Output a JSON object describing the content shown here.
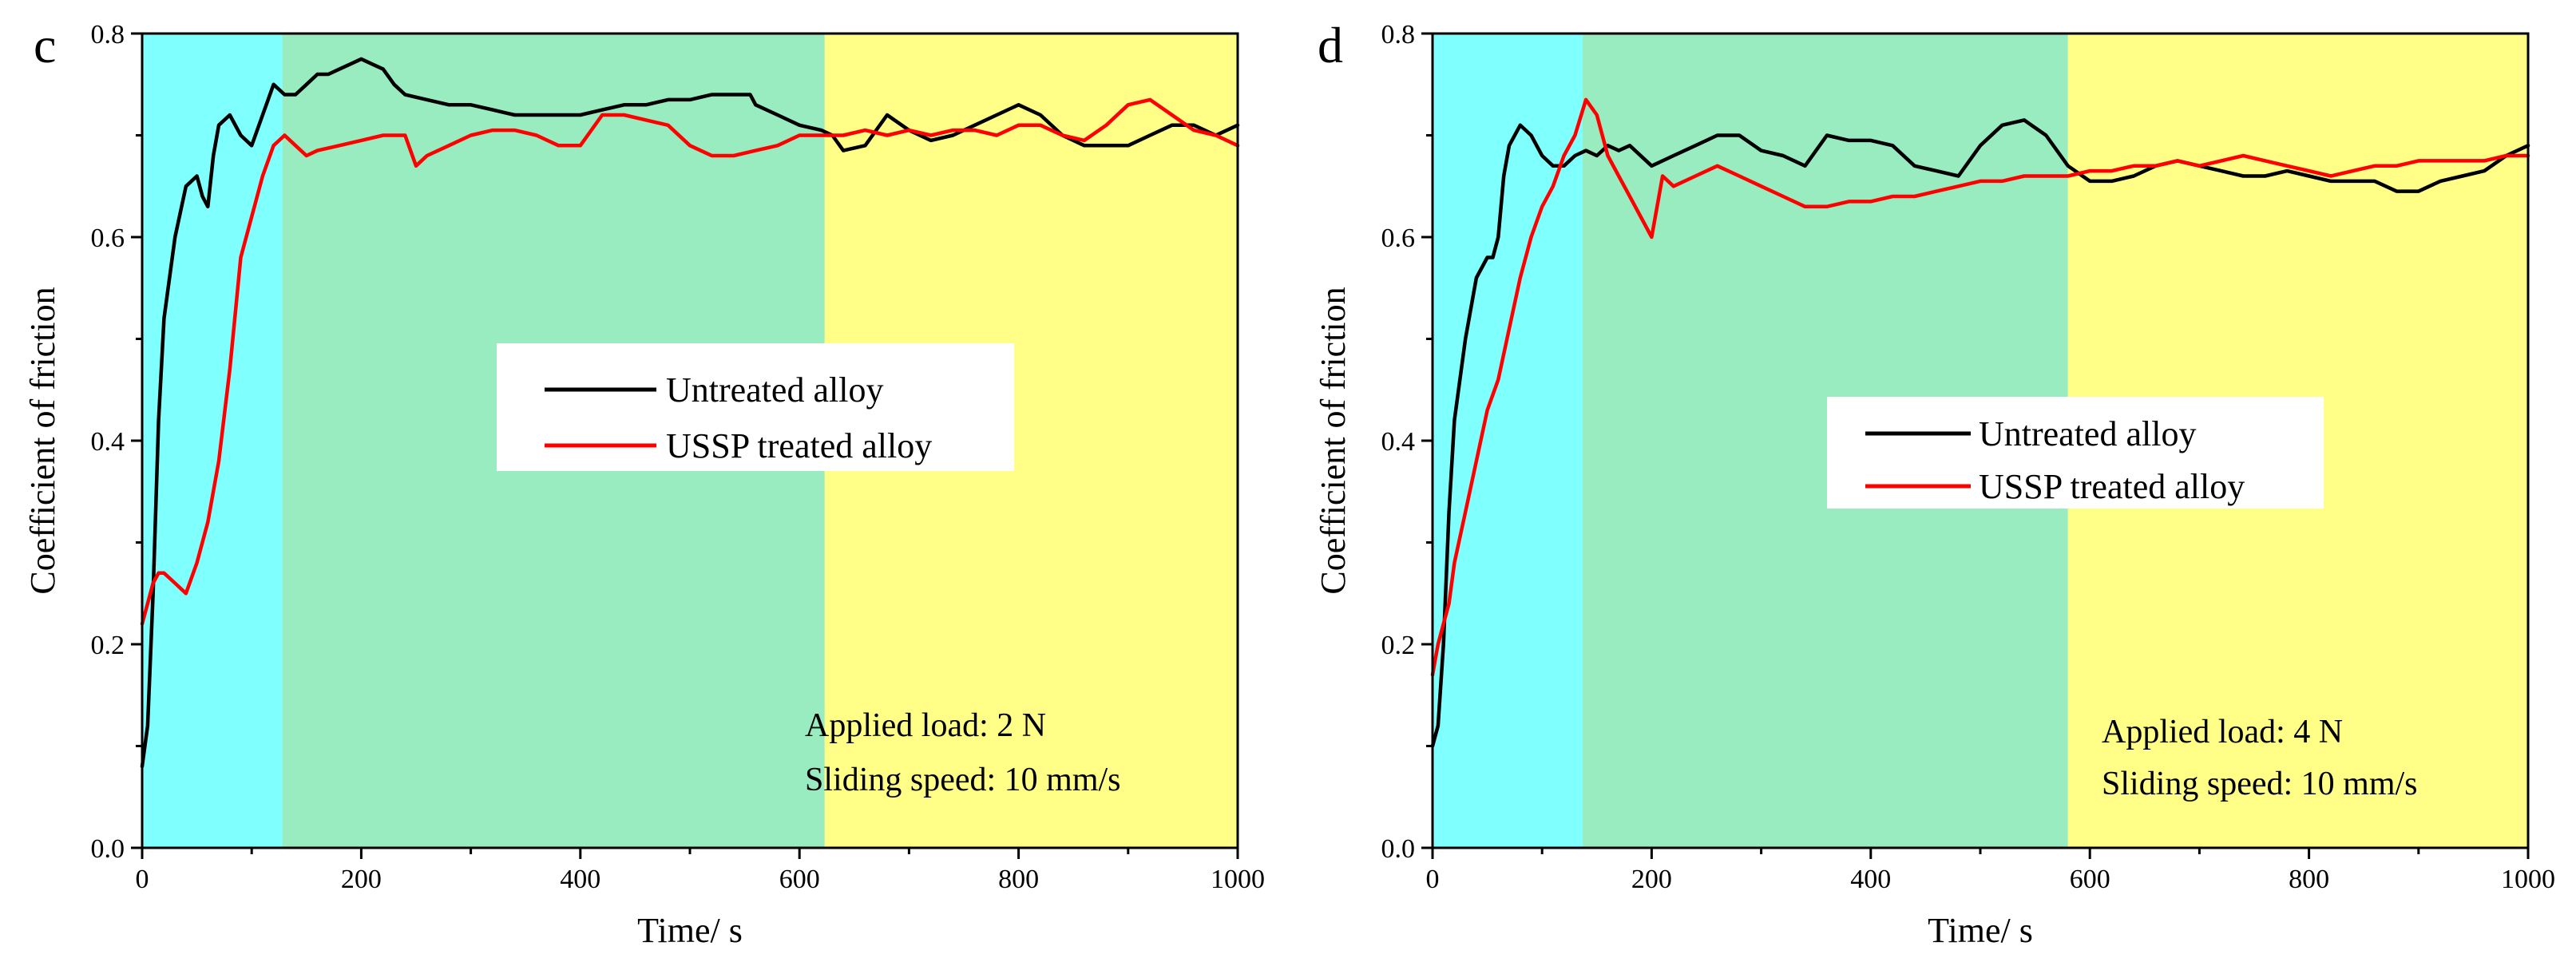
{
  "chart_data": [
    {
      "panel_label": "c",
      "type": "line",
      "xlabel": "Time/ s",
      "ylabel": "Coefficient of friction",
      "xlim": [
        0,
        1000
      ],
      "ylim": [
        0,
        0.8
      ],
      "x_ticks": [
        0,
        200,
        400,
        600,
        800,
        1000
      ],
      "x_tick_labels": [
        "0",
        "200",
        "400",
        "600",
        "800",
        "1000"
      ],
      "y_ticks": [
        0,
        0.2,
        0.4,
        0.6,
        0.8
      ],
      "y_tick_labels": [
        "0.0",
        "0.2",
        "0.4",
        "0.6",
        "0.8"
      ],
      "regions": [
        {
          "name": "stage-1",
          "x0": 0,
          "x1": 128,
          "color": "#80FFFF"
        },
        {
          "name": "stage-2",
          "x0": 128,
          "x1": 623,
          "color": "#99EBC0"
        },
        {
          "name": "stage-3",
          "x0": 623,
          "x1": 1000,
          "color": "#FFFF88"
        }
      ],
      "legend_position": "center",
      "series": [
        {
          "name": "Untreated alloy",
          "color": "#000000",
          "x": [
            0,
            5,
            10,
            15,
            20,
            30,
            40,
            50,
            55,
            60,
            65,
            70,
            80,
            90,
            100,
            110,
            120,
            130,
            140,
            150,
            160,
            170,
            180,
            190,
            200,
            210,
            220,
            230,
            240,
            260,
            280,
            300,
            320,
            340,
            360,
            380,
            400,
            420,
            440,
            460,
            480,
            500,
            520,
            540,
            555,
            560,
            580,
            600,
            620,
            630,
            640,
            660,
            680,
            700,
            720,
            740,
            760,
            780,
            800,
            820,
            840,
            860,
            880,
            900,
            920,
            940,
            960,
            980,
            1000
          ],
          "y": [
            0.08,
            0.12,
            0.25,
            0.42,
            0.52,
            0.6,
            0.65,
            0.66,
            0.64,
            0.63,
            0.68,
            0.71,
            0.72,
            0.7,
            0.69,
            0.72,
            0.75,
            0.74,
            0.74,
            0.75,
            0.76,
            0.76,
            0.765,
            0.77,
            0.775,
            0.77,
            0.765,
            0.75,
            0.74,
            0.735,
            0.73,
            0.73,
            0.725,
            0.72,
            0.72,
            0.72,
            0.72,
            0.725,
            0.73,
            0.73,
            0.735,
            0.735,
            0.74,
            0.74,
            0.74,
            0.73,
            0.72,
            0.71,
            0.705,
            0.7,
            0.685,
            0.69,
            0.72,
            0.705,
            0.695,
            0.7,
            0.71,
            0.72,
            0.73,
            0.72,
            0.7,
            0.69,
            0.69,
            0.69,
            0.7,
            0.71,
            0.71,
            0.7,
            0.71
          ]
        },
        {
          "name": "USSP treated alloy",
          "color": "#FF0000",
          "x": [
            0,
            5,
            10,
            15,
            20,
            25,
            30,
            40,
            50,
            60,
            70,
            80,
            90,
            100,
            110,
            120,
            130,
            140,
            150,
            160,
            180,
            200,
            220,
            240,
            250,
            260,
            280,
            300,
            320,
            340,
            360,
            380,
            400,
            420,
            440,
            460,
            480,
            500,
            520,
            540,
            560,
            580,
            600,
            620,
            640,
            660,
            680,
            700,
            720,
            740,
            760,
            780,
            800,
            820,
            840,
            860,
            880,
            900,
            920,
            940,
            960,
            980,
            1000
          ],
          "y": [
            0.22,
            0.24,
            0.26,
            0.27,
            0.27,
            0.265,
            0.26,
            0.25,
            0.28,
            0.32,
            0.38,
            0.47,
            0.58,
            0.62,
            0.66,
            0.69,
            0.7,
            0.69,
            0.68,
            0.685,
            0.69,
            0.695,
            0.7,
            0.7,
            0.67,
            0.68,
            0.69,
            0.7,
            0.705,
            0.705,
            0.7,
            0.69,
            0.69,
            0.72,
            0.72,
            0.715,
            0.71,
            0.69,
            0.68,
            0.68,
            0.685,
            0.69,
            0.7,
            0.7,
            0.7,
            0.705,
            0.7,
            0.705,
            0.7,
            0.705,
            0.705,
            0.7,
            0.71,
            0.71,
            0.7,
            0.695,
            0.71,
            0.73,
            0.735,
            0.72,
            0.705,
            0.7,
            0.69
          ]
        }
      ],
      "annotations": [
        "Applied load: 2 N",
        "Sliding speed: 10 mm/s"
      ]
    },
    {
      "panel_label": "d",
      "type": "line",
      "xlabel": "Time/ s",
      "ylabel": "Coefficient of friction",
      "xlim": [
        0,
        1000
      ],
      "ylim": [
        0,
        0.8
      ],
      "x_ticks": [
        0,
        200,
        400,
        600,
        800,
        1000
      ],
      "x_tick_labels": [
        "0",
        "200",
        "400",
        "600",
        "800",
        "1000"
      ],
      "y_ticks": [
        0,
        0.2,
        0.4,
        0.6,
        0.8
      ],
      "y_tick_labels": [
        "0.0",
        "0.2",
        "0.4",
        "0.6",
        "0.8"
      ],
      "regions": [
        {
          "name": "stage-1",
          "x0": 0,
          "x1": 137,
          "color": "#80FFFF"
        },
        {
          "name": "stage-2",
          "x0": 137,
          "x1": 580,
          "color": "#99EBC0"
        },
        {
          "name": "stage-3",
          "x0": 580,
          "x1": 1000,
          "color": "#FFFF88"
        }
      ],
      "legend_position": "center-right",
      "series": [
        {
          "name": "Untreated alloy",
          "color": "#000000",
          "x": [
            0,
            5,
            10,
            15,
            20,
            30,
            40,
            50,
            55,
            60,
            65,
            70,
            80,
            90,
            100,
            110,
            120,
            130,
            140,
            150,
            160,
            170,
            180,
            200,
            220,
            240,
            260,
            280,
            300,
            320,
            340,
            360,
            380,
            400,
            420,
            440,
            460,
            480,
            500,
            520,
            540,
            560,
            580,
            600,
            620,
            640,
            660,
            680,
            700,
            720,
            740,
            760,
            780,
            800,
            820,
            840,
            860,
            880,
            900,
            920,
            940,
            960,
            980,
            1000
          ],
          "y": [
            0.1,
            0.12,
            0.2,
            0.33,
            0.42,
            0.5,
            0.56,
            0.58,
            0.58,
            0.6,
            0.66,
            0.69,
            0.71,
            0.7,
            0.68,
            0.67,
            0.67,
            0.68,
            0.685,
            0.68,
            0.69,
            0.685,
            0.69,
            0.67,
            0.68,
            0.69,
            0.7,
            0.7,
            0.685,
            0.68,
            0.67,
            0.7,
            0.695,
            0.695,
            0.69,
            0.67,
            0.665,
            0.66,
            0.69,
            0.71,
            0.715,
            0.7,
            0.67,
            0.655,
            0.655,
            0.66,
            0.67,
            0.675,
            0.67,
            0.665,
            0.66,
            0.66,
            0.665,
            0.66,
            0.655,
            0.655,
            0.655,
            0.645,
            0.645,
            0.655,
            0.66,
            0.665,
            0.68,
            0.69
          ]
        },
        {
          "name": "USSP treated alloy",
          "color": "#FF0000",
          "x": [
            0,
            5,
            10,
            15,
            20,
            30,
            40,
            50,
            60,
            70,
            80,
            90,
            100,
            110,
            120,
            130,
            140,
            150,
            160,
            170,
            180,
            190,
            200,
            210,
            220,
            240,
            260,
            280,
            300,
            320,
            340,
            360,
            380,
            400,
            420,
            440,
            460,
            480,
            500,
            520,
            540,
            560,
            580,
            600,
            620,
            640,
            660,
            680,
            700,
            720,
            740,
            760,
            780,
            800,
            820,
            840,
            860,
            880,
            900,
            920,
            940,
            960,
            980,
            1000
          ],
          "y": [
            0.17,
            0.2,
            0.22,
            0.24,
            0.28,
            0.33,
            0.38,
            0.43,
            0.46,
            0.51,
            0.56,
            0.6,
            0.63,
            0.65,
            0.68,
            0.7,
            0.735,
            0.72,
            0.68,
            0.66,
            0.64,
            0.62,
            0.6,
            0.66,
            0.65,
            0.66,
            0.67,
            0.66,
            0.65,
            0.64,
            0.63,
            0.63,
            0.635,
            0.635,
            0.64,
            0.64,
            0.645,
            0.65,
            0.655,
            0.655,
            0.66,
            0.66,
            0.66,
            0.665,
            0.665,
            0.67,
            0.67,
            0.675,
            0.67,
            0.675,
            0.68,
            0.675,
            0.67,
            0.665,
            0.66,
            0.665,
            0.67,
            0.67,
            0.675,
            0.675,
            0.675,
            0.675,
            0.68,
            0.68
          ]
        }
      ],
      "annotations": [
        "Applied load: 4 N",
        "Sliding speed: 10 mm/s"
      ]
    }
  ]
}
